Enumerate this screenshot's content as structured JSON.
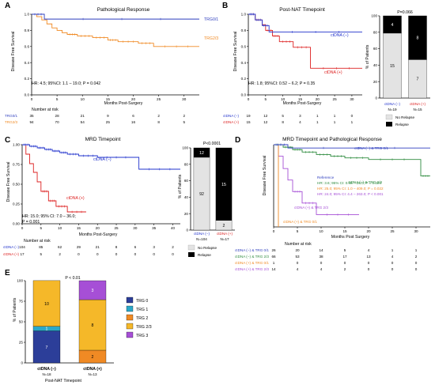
{
  "colors": {
    "trg01": "#2f3fbf",
    "trg23": "#f08a24",
    "neg": "#2233cc",
    "pos": "#dd2222",
    "grp_neg_trg01": "#2f3fbf",
    "grp_neg_trg23": "#2e8b3e",
    "grp_pos_trg01": "#f08a24",
    "grp_pos_trg23": "#a64fd6",
    "relapse": "#000000",
    "no_relapse": "#e3e3e3",
    "trg0": "#2c3e99",
    "trg1": "#2aa8c9",
    "trg2": "#f08a24",
    "trg23_bar": "#f5b829",
    "trg3": "#a64fd6"
  },
  "panels": {
    "A": {
      "letter": "A",
      "title": "Pathological Response",
      "ylabel": "Disease Free Survival",
      "xlabel": "Months Post-Surgery",
      "stats": "HR: 4.5; 95%CI: 1.1 – 19.0; P = 0.042",
      "risk_title": "Number at risk",
      "risk_rows": [
        {
          "label": "TRG0/1",
          "values": [
            "35",
            "28",
            "21",
            "9",
            "6",
            "2",
            "2"
          ]
        },
        {
          "label": "TRG2/3",
          "values": [
            "94",
            "70",
            "54",
            "25",
            "16",
            "8",
            "5"
          ]
        }
      ]
    },
    "B": {
      "letter": "B",
      "title": "Post-NAT Timepoint",
      "ylabel": "Disease Free Survival",
      "xlabel": "Months Post-Surgery",
      "stats": "HR: 1.8; 95%CI: 0.52 – 6.2; P = 0.35",
      "risk_rows": [
        {
          "label": "ctDNA (−)",
          "values": [
            "19",
            "12",
            "5",
            "3",
            "1",
            "1",
            "0"
          ]
        },
        {
          "label": "ctDNA (+)",
          "values": [
            "15",
            "12",
            "8",
            "4",
            "1",
            "1",
            "1"
          ]
        }
      ],
      "bar_p": "P=0.066",
      "bar_ylabel": "% of Patients",
      "bar_labels": [
        "ctDNA (−)",
        "ctDNA (+)"
      ],
      "bar_n": [
        "N=19",
        "N=15"
      ],
      "legend": [
        "No Relapse",
        "Relapse"
      ]
    },
    "C": {
      "letter": "C",
      "title": "MRD Timepoint",
      "ylabel": "Disease Free Survival",
      "xlabel": "Months Post-Surgery",
      "stats": "HR: 15.0; 95% CI: 7.0 – 36.0;",
      "stats2": "P = 0.001",
      "risk_title": "Number at risk",
      "risk_rows": [
        {
          "label": "ctDNA (−)",
          "values": [
            "104",
            "85",
            "62",
            "29",
            "21",
            "8",
            "6",
            "3",
            "2"
          ]
        },
        {
          "label": "ctDNA (+)",
          "values": [
            "17",
            "5",
            "2",
            "0",
            "0",
            "0",
            "0",
            "0",
            "0"
          ]
        }
      ],
      "bar_p": "P<0.0001",
      "bar_ylabel": "% of Patients",
      "bar_labels": [
        "ctDNA (−)",
        "ctDNA (+)"
      ],
      "bar_n": [
        "N=104",
        "N=17"
      ],
      "legend": [
        "No Relapse",
        "Relapse"
      ]
    },
    "D": {
      "letter": "D",
      "title": "MRD Timepoint and Pathological Response",
      "ylabel": "Disease Free Survival",
      "xlabel": "Months Post Surgery",
      "reference": "Reference",
      "hr_lines": [
        "HR: 3.6; 95% CI: 0.46 – 28.0; P = 0.224",
        "HR: 25.0; 95% CI: 1.0 – 409.0; P = 0.022",
        "HR: 24.0; 95% CI: 4.4 – 263.0; P < 0.001"
      ],
      "risk_title": "Number at risk",
      "risk_rows": [
        {
          "label": "ctDNA (−) & TRG 0/1",
          "values": [
            "26",
            "20",
            "14",
            "5",
            "4",
            "1",
            "1"
          ]
        },
        {
          "label": "ctDNA (−) & TRG 2/3",
          "values": [
            "66",
            "53",
            "38",
            "17",
            "13",
            "4",
            "2"
          ]
        },
        {
          "label": "ctDNA (+) & TRG 0/1",
          "values": [
            "1",
            "0",
            "0",
            "0",
            "0",
            "0",
            "0"
          ]
        },
        {
          "label": "ctDNA (+) & TRG 2/3",
          "values": [
            "14",
            "4",
            "4",
            "2",
            "0",
            "0",
            "0"
          ]
        }
      ]
    },
    "E": {
      "letter": "E",
      "p": "P < 0.01",
      "ylabel": "% of Patients",
      "xlabel": "Post-NAT Timepoint",
      "bar_labels": [
        "ctDNA (−)",
        "ctDNA (+)"
      ],
      "bar_n": [
        "N=18",
        "N=13"
      ],
      "legend": [
        "TRG 0",
        "TRG 1",
        "TRG 2",
        "TRG 2/3",
        "TRG 3"
      ]
    }
  },
  "chart_data": [
    {
      "panel": "A",
      "type": "line",
      "title": "Pathological Response",
      "xlabel": "Months Post-Surgery",
      "ylabel": "Disease Free Survival",
      "xlim": [
        0,
        33
      ],
      "ylim": [
        0,
        1.0
      ],
      "xticks": [
        0,
        5,
        10,
        15,
        20,
        25,
        30
      ],
      "yticks": [
        0.0,
        0.2,
        0.4,
        0.6,
        0.8,
        1.0
      ],
      "series": [
        {
          "name": "TRG0/1",
          "x": [
            0,
            2.5,
            33
          ],
          "y": [
            1.0,
            0.94,
            0.94
          ]
        },
        {
          "name": "TRG2/3",
          "x": [
            0,
            1,
            2,
            3,
            4,
            5,
            6,
            7,
            9,
            12,
            15,
            17,
            21,
            24,
            33
          ],
          "y": [
            1.0,
            0.97,
            0.93,
            0.88,
            0.83,
            0.8,
            0.77,
            0.75,
            0.73,
            0.71,
            0.68,
            0.66,
            0.64,
            0.6,
            0.6
          ]
        }
      ]
    },
    {
      "panel": "B-km",
      "type": "line",
      "title": "Post-NAT Timepoint",
      "xlabel": "Months Post-Surgery",
      "ylabel": "Disease Free Survival",
      "xlim": [
        0,
        33
      ],
      "ylim": [
        0,
        1.0
      ],
      "xticks": [
        0,
        5,
        10,
        15,
        20,
        25,
        30
      ],
      "yticks": [
        0.0,
        0.2,
        0.4,
        0.6,
        0.8,
        1.0
      ],
      "series": [
        {
          "name": "ctDNA (−)",
          "x": [
            0,
            2,
            4,
            6,
            33
          ],
          "y": [
            1.0,
            0.93,
            0.86,
            0.78,
            0.78
          ]
        },
        {
          "name": "ctDNA (+)",
          "x": [
            0,
            2,
            4,
            5,
            7,
            9,
            13,
            18,
            33
          ],
          "y": [
            1.0,
            0.93,
            0.87,
            0.8,
            0.73,
            0.66,
            0.59,
            0.33,
            0.33
          ]
        }
      ]
    },
    {
      "panel": "B-bar",
      "type": "bar",
      "title": "P=0.066",
      "ylabel": "% of Patients",
      "categories": [
        "ctDNA (−)",
        "ctDNA (+)"
      ],
      "ylim": [
        0,
        100
      ],
      "yticks": [
        0,
        20,
        40,
        60,
        80,
        100
      ],
      "series": [
        {
          "name": "No Relapse",
          "counts": [
            15,
            7
          ],
          "values": [
            78.9,
            46.7
          ]
        },
        {
          "name": "Relapse",
          "counts": [
            4,
            8
          ],
          "values": [
            21.1,
            53.3
          ]
        }
      ]
    },
    {
      "panel": "C-km",
      "type": "line",
      "title": "MRD Timepoint",
      "xlabel": "Months Post-Surgery",
      "ylabel": "Disease Free Survival",
      "xlim": [
        0,
        42
      ],
      "ylim": [
        0,
        1.0
      ],
      "xticks": [
        0,
        5,
        10,
        15,
        20,
        25,
        30,
        35,
        40
      ],
      "yticks": [
        0.0,
        0.25,
        0.5,
        0.75,
        1.0
      ],
      "series": [
        {
          "name": "ctDNA (−)",
          "x": [
            0,
            2,
            4,
            6,
            8,
            10,
            12,
            15,
            20,
            30,
            31,
            42
          ],
          "y": [
            1.0,
            0.98,
            0.96,
            0.94,
            0.92,
            0.9,
            0.88,
            0.86,
            0.84,
            0.84,
            0.69,
            0.69
          ]
        },
        {
          "name": "ctDNA (+)",
          "x": [
            0,
            1,
            2,
            3,
            4,
            5,
            7,
            9,
            12,
            17
          ],
          "y": [
            1.0,
            0.88,
            0.76,
            0.65,
            0.53,
            0.41,
            0.29,
            0.22,
            0.15,
            0.15
          ]
        }
      ]
    },
    {
      "panel": "C-bar",
      "type": "bar",
      "title": "P<0.0001",
      "ylabel": "% of Patients",
      "categories": [
        "ctDNA (−)",
        "ctDNA (+)"
      ],
      "ylim": [
        0,
        100
      ],
      "yticks": [
        0,
        20,
        40,
        60,
        80,
        100
      ],
      "series": [
        {
          "name": "No Relapse",
          "counts": [
            92,
            2
          ],
          "values": [
            88.5,
            11.8
          ]
        },
        {
          "name": "Relapse",
          "counts": [
            12,
            15
          ],
          "values": [
            11.5,
            88.2
          ]
        }
      ]
    },
    {
      "panel": "D",
      "type": "line",
      "title": "MRD Timepoint and Pathological Response",
      "xlabel": "Months Post Surgery",
      "ylabel": "Disease Free Survival",
      "xlim": [
        0,
        33
      ],
      "ylim": [
        0,
        1.0
      ],
      "xticks": [
        0,
        5,
        10,
        15,
        20,
        25,
        30
      ],
      "series": [
        {
          "name": "ctDNA (−) & TRG 0/1",
          "x": [
            0,
            3,
            33
          ],
          "y": [
            1.0,
            0.96,
            0.96
          ]
        },
        {
          "name": "ctDNA (−) & TRG 2/3",
          "x": [
            0,
            2,
            4,
            6,
            9,
            12,
            15,
            20,
            30,
            31,
            33
          ],
          "y": [
            1.0,
            0.97,
            0.94,
            0.91,
            0.88,
            0.86,
            0.84,
            0.82,
            0.82,
            0.62,
            0.62
          ]
        },
        {
          "name": "ctDNA (+) & TRG 0/1",
          "x": [
            0,
            1,
            1
          ],
          "y": [
            1.0,
            1.0,
            0.0
          ]
        },
        {
          "name": "ctDNA (+) & TRG 2/3",
          "x": [
            0,
            1,
            2,
            3,
            4,
            6,
            9,
            18
          ],
          "y": [
            1.0,
            0.86,
            0.71,
            0.57,
            0.43,
            0.29,
            0.15,
            0.15
          ]
        }
      ]
    },
    {
      "panel": "E",
      "type": "bar",
      "title": "P < 0.01",
      "xlabel": "Post-NAT Timepoint",
      "ylabel": "% of Patients",
      "categories": [
        "ctDNA (−)",
        "ctDNA (+)"
      ],
      "ylim": [
        0,
        100
      ],
      "yticks": [
        0,
        25,
        50,
        75,
        100
      ],
      "series": [
        {
          "name": "TRG 0",
          "counts": [
            7,
            0
          ],
          "values": [
            38.9,
            0
          ]
        },
        {
          "name": "TRG 1",
          "counts": [
            1,
            0
          ],
          "values": [
            5.6,
            0
          ]
        },
        {
          "name": "TRG 2",
          "counts": [
            0,
            2
          ],
          "values": [
            0,
            15.4
          ]
        },
        {
          "name": "TRG 2/3",
          "counts": [
            10,
            8
          ],
          "values": [
            55.6,
            61.5
          ]
        },
        {
          "name": "TRG 3",
          "counts": [
            0,
            3
          ],
          "values": [
            0,
            23.1
          ]
        }
      ]
    }
  ]
}
